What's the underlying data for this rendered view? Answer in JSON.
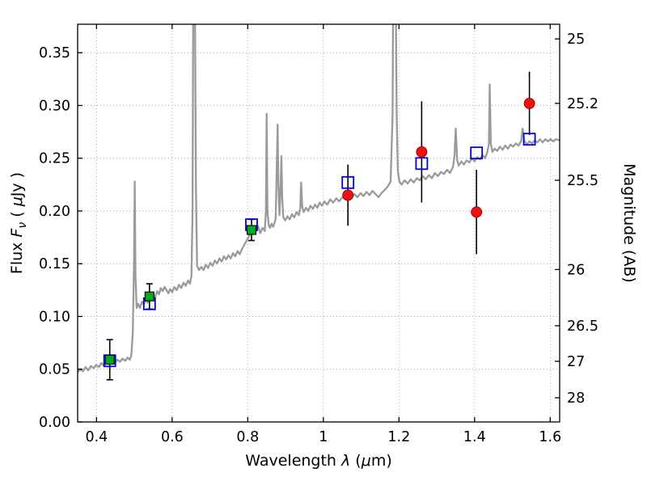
{
  "style": {
    "background": "#ffffff",
    "frame_color": "#000000",
    "grid_color": "#aaaaaa",
    "errorbar_color": "#000000",
    "tick_font_size": 17.5,
    "axis_font_size": 19
  },
  "chart_data": {
    "type": "line",
    "xlabel": "Wavelength λ (μm)",
    "ylabel_left": "Flux Fν ( μJy )",
    "ylabel_right": "Magnitude (AB)",
    "xlabel_parts": [
      {
        "t": "Wavelength ",
        "i": 0
      },
      {
        "t": "λ",
        "i": 1
      },
      {
        "t": " (",
        "i": 0
      },
      {
        "t": "μ",
        "i": 1
      },
      {
        "t": "m)",
        "i": 0
      }
    ],
    "ylabel_left_parts": [
      {
        "t": "Flux ",
        "i": 0
      },
      {
        "t": "F",
        "i": 1
      },
      {
        "t": "ν",
        "i": 1,
        "sub": true
      },
      {
        "t": " ( ",
        "i": 0
      },
      {
        "t": "μ",
        "i": 1
      },
      {
        "t": "Jy )",
        "i": 0
      }
    ],
    "ylabel_right_parts": [
      {
        "t": "Magnitude (AB)",
        "i": 0
      }
    ],
    "xlim": [
      0.35,
      1.625
    ],
    "ylim": [
      0.0,
      0.377
    ],
    "grid": "dotted",
    "x_ticks": [
      {
        "value": 0.4,
        "label": "0.4"
      },
      {
        "value": 0.6,
        "label": "0.6"
      },
      {
        "value": 0.8,
        "label": "0.8"
      },
      {
        "value": 1.0,
        "label": "1"
      },
      {
        "value": 1.2,
        "label": "1.2"
      },
      {
        "value": 1.4,
        "label": "1.4"
      },
      {
        "value": 1.6,
        "label": "1.6"
      }
    ],
    "y_ticks_left": [
      {
        "value": 0.0,
        "label": "0.00"
      },
      {
        "value": 0.05,
        "label": "0.05"
      },
      {
        "value": 0.1,
        "label": "0.10"
      },
      {
        "value": 0.15,
        "label": "0.15"
      },
      {
        "value": 0.2,
        "label": "0.20"
      },
      {
        "value": 0.25,
        "label": "0.25"
      },
      {
        "value": 0.3,
        "label": "0.30"
      },
      {
        "value": 0.35,
        "label": "0.35"
      }
    ],
    "y_ticks_right": [
      {
        "label": "25",
        "flux": 0.3631
      },
      {
        "label": "25.2",
        "flux": 0.302
      },
      {
        "label": "25.5",
        "flux": 0.2291
      },
      {
        "label": "26",
        "flux": 0.1445
      },
      {
        "label": "26.5",
        "flux": 0.0912
      },
      {
        "label": "27",
        "flux": 0.0575
      },
      {
        "label": "28",
        "flux": 0.0229
      }
    ],
    "series": {
      "model_spectrum": {
        "color": "#9a9a9a",
        "linewidth": 2.3,
        "points": [
          [
            0.35,
            0.047
          ],
          [
            0.357,
            0.05
          ],
          [
            0.364,
            0.048
          ],
          [
            0.371,
            0.052
          ],
          [
            0.378,
            0.049
          ],
          [
            0.385,
            0.053
          ],
          [
            0.392,
            0.051
          ],
          [
            0.399,
            0.054
          ],
          [
            0.406,
            0.052
          ],
          [
            0.413,
            0.056
          ],
          [
            0.42,
            0.053
          ],
          [
            0.427,
            0.057
          ],
          [
            0.434,
            0.055
          ],
          [
            0.441,
            0.058
          ],
          [
            0.448,
            0.056
          ],
          [
            0.455,
            0.059
          ],
          [
            0.462,
            0.057
          ],
          [
            0.469,
            0.06
          ],
          [
            0.476,
            0.058
          ],
          [
            0.482,
            0.061
          ],
          [
            0.488,
            0.059
          ],
          [
            0.492,
            0.063
          ],
          [
            0.496,
            0.085
          ],
          [
            0.499,
            0.15
          ],
          [
            0.501,
            0.228
          ],
          [
            0.503,
            0.14
          ],
          [
            0.506,
            0.108
          ],
          [
            0.51,
            0.112
          ],
          [
            0.515,
            0.108
          ],
          [
            0.52,
            0.114
          ],
          [
            0.525,
            0.111
          ],
          [
            0.53,
            0.116
          ],
          [
            0.535,
            0.113
          ],
          [
            0.54,
            0.118
          ],
          [
            0.545,
            0.115
          ],
          [
            0.55,
            0.121
          ],
          [
            0.555,
            0.118
          ],
          [
            0.56,
            0.124
          ],
          [
            0.565,
            0.121
          ],
          [
            0.57,
            0.127
          ],
          [
            0.575,
            0.124
          ],
          [
            0.58,
            0.128
          ],
          [
            0.585,
            0.125
          ],
          [
            0.59,
            0.122
          ],
          [
            0.595,
            0.126
          ],
          [
            0.6,
            0.123
          ],
          [
            0.606,
            0.128
          ],
          [
            0.612,
            0.125
          ],
          [
            0.618,
            0.13
          ],
          [
            0.624,
            0.127
          ],
          [
            0.63,
            0.132
          ],
          [
            0.636,
            0.129
          ],
          [
            0.642,
            0.134
          ],
          [
            0.647,
            0.131
          ],
          [
            0.651,
            0.138
          ],
          [
            0.654,
            0.2
          ],
          [
            0.656,
            0.42
          ],
          [
            0.66,
            0.42
          ],
          [
            0.663,
            0.22
          ],
          [
            0.666,
            0.148
          ],
          [
            0.671,
            0.144
          ],
          [
            0.677,
            0.147
          ],
          [
            0.683,
            0.144
          ],
          [
            0.689,
            0.149
          ],
          [
            0.695,
            0.146
          ],
          [
            0.701,
            0.151
          ],
          [
            0.707,
            0.148
          ],
          [
            0.713,
            0.153
          ],
          [
            0.719,
            0.15
          ],
          [
            0.725,
            0.155
          ],
          [
            0.731,
            0.152
          ],
          [
            0.737,
            0.157
          ],
          [
            0.743,
            0.154
          ],
          [
            0.749,
            0.158
          ],
          [
            0.755,
            0.155
          ],
          [
            0.761,
            0.16
          ],
          [
            0.767,
            0.157
          ],
          [
            0.773,
            0.162
          ],
          [
            0.779,
            0.159
          ],
          [
            0.785,
            0.164
          ],
          [
            0.791,
            0.168
          ],
          [
            0.797,
            0.172
          ],
          [
            0.803,
            0.176
          ],
          [
            0.809,
            0.18
          ],
          [
            0.815,
            0.184
          ],
          [
            0.821,
            0.181
          ],
          [
            0.827,
            0.186
          ],
          [
            0.833,
            0.179
          ],
          [
            0.839,
            0.184
          ],
          [
            0.845,
            0.181
          ],
          [
            0.848,
            0.2
          ],
          [
            0.85,
            0.292
          ],
          [
            0.852,
            0.2
          ],
          [
            0.855,
            0.187
          ],
          [
            0.859,
            0.184
          ],
          [
            0.863,
            0.188
          ],
          [
            0.867,
            0.185
          ],
          [
            0.871,
            0.189
          ],
          [
            0.874,
            0.193
          ],
          [
            0.877,
            0.245
          ],
          [
            0.879,
            0.282
          ],
          [
            0.881,
            0.225
          ],
          [
            0.884,
            0.196
          ],
          [
            0.887,
            0.225
          ],
          [
            0.889,
            0.252
          ],
          [
            0.891,
            0.212
          ],
          [
            0.894,
            0.194
          ],
          [
            0.899,
            0.191
          ],
          [
            0.905,
            0.195
          ],
          [
            0.911,
            0.192
          ],
          [
            0.917,
            0.197
          ],
          [
            0.923,
            0.194
          ],
          [
            0.929,
            0.199
          ],
          [
            0.935,
            0.196
          ],
          [
            0.939,
            0.203
          ],
          [
            0.941,
            0.227
          ],
          [
            0.944,
            0.204
          ],
          [
            0.948,
            0.199
          ],
          [
            0.954,
            0.203
          ],
          [
            0.96,
            0.2
          ],
          [
            0.966,
            0.205
          ],
          [
            0.972,
            0.202
          ],
          [
            0.978,
            0.206
          ],
          [
            0.984,
            0.203
          ],
          [
            0.99,
            0.208
          ],
          [
            0.996,
            0.205
          ],
          [
            1.003,
            0.209
          ],
          [
            1.01,
            0.206
          ],
          [
            1.018,
            0.211
          ],
          [
            1.026,
            0.208
          ],
          [
            1.034,
            0.212
          ],
          [
            1.042,
            0.209
          ],
          [
            1.05,
            0.213
          ],
          [
            1.058,
            0.211
          ],
          [
            1.066,
            0.215
          ],
          [
            1.074,
            0.212
          ],
          [
            1.082,
            0.216
          ],
          [
            1.09,
            0.213
          ],
          [
            1.098,
            0.217
          ],
          [
            1.106,
            0.214
          ],
          [
            1.114,
            0.218
          ],
          [
            1.122,
            0.215
          ],
          [
            1.13,
            0.219
          ],
          [
            1.138,
            0.216
          ],
          [
            1.146,
            0.213
          ],
          [
            1.154,
            0.217
          ],
          [
            1.162,
            0.22
          ],
          [
            1.17,
            0.223
          ],
          [
            1.178,
            0.228
          ],
          [
            1.183,
            0.29
          ],
          [
            1.185,
            0.43
          ],
          [
            1.191,
            0.43
          ],
          [
            1.194,
            0.29
          ],
          [
            1.197,
            0.238
          ],
          [
            1.201,
            0.228
          ],
          [
            1.207,
            0.225
          ],
          [
            1.215,
            0.229
          ],
          [
            1.223,
            0.226
          ],
          [
            1.231,
            0.23
          ],
          [
            1.239,
            0.227
          ],
          [
            1.247,
            0.231
          ],
          [
            1.255,
            0.229
          ],
          [
            1.263,
            0.233
          ],
          [
            1.271,
            0.23
          ],
          [
            1.279,
            0.234
          ],
          [
            1.287,
            0.231
          ],
          [
            1.295,
            0.236
          ],
          [
            1.303,
            0.233
          ],
          [
            1.311,
            0.237
          ],
          [
            1.319,
            0.235
          ],
          [
            1.327,
            0.239
          ],
          [
            1.335,
            0.236
          ],
          [
            1.343,
            0.242
          ],
          [
            1.347,
            0.252
          ],
          [
            1.35,
            0.278
          ],
          [
            1.354,
            0.248
          ],
          [
            1.358,
            0.243
          ],
          [
            1.365,
            0.247
          ],
          [
            1.372,
            0.244
          ],
          [
            1.379,
            0.248
          ],
          [
            1.386,
            0.246
          ],
          [
            1.393,
            0.25
          ],
          [
            1.4,
            0.247
          ],
          [
            1.407,
            0.251
          ],
          [
            1.414,
            0.249
          ],
          [
            1.421,
            0.253
          ],
          [
            1.428,
            0.25
          ],
          [
            1.434,
            0.256
          ],
          [
            1.438,
            0.264
          ],
          [
            1.44,
            0.32
          ],
          [
            1.443,
            0.264
          ],
          [
            1.447,
            0.256
          ],
          [
            1.453,
            0.259
          ],
          [
            1.46,
            0.257
          ],
          [
            1.467,
            0.261
          ],
          [
            1.474,
            0.258
          ],
          [
            1.481,
            0.262
          ],
          [
            1.488,
            0.259
          ],
          [
            1.495,
            0.263
          ],
          [
            1.502,
            0.261
          ],
          [
            1.509,
            0.264
          ],
          [
            1.516,
            0.262
          ],
          [
            1.523,
            0.266
          ],
          [
            1.527,
            0.278
          ],
          [
            1.531,
            0.267
          ],
          [
            1.538,
            0.263
          ],
          [
            1.545,
            0.266
          ],
          [
            1.552,
            0.264
          ],
          [
            1.559,
            0.267
          ],
          [
            1.566,
            0.265
          ],
          [
            1.573,
            0.268
          ],
          [
            1.58,
            0.265
          ],
          [
            1.587,
            0.268
          ],
          [
            1.594,
            0.266
          ],
          [
            1.601,
            0.268
          ],
          [
            1.608,
            0.266
          ],
          [
            1.615,
            0.268
          ],
          [
            1.625,
            0.267
          ]
        ]
      },
      "model_photometry": {
        "marker": "open-square",
        "color": "#0000dd",
        "size": 14,
        "points": [
          {
            "x": 0.435,
            "y": 0.058
          },
          {
            "x": 0.54,
            "y": 0.112
          },
          {
            "x": 0.81,
            "y": 0.187
          },
          {
            "x": 1.065,
            "y": 0.227
          },
          {
            "x": 1.26,
            "y": 0.245
          },
          {
            "x": 1.405,
            "y": 0.255
          },
          {
            "x": 1.545,
            "y": 0.268
          }
        ]
      },
      "observed_squares": {
        "marker": "filled-square",
        "fill": "#00aa22",
        "edge": "#000000",
        "size": 11,
        "capsize": 4,
        "points": [
          {
            "x": 0.435,
            "y": 0.059,
            "yerr": 0.019
          },
          {
            "x": 0.54,
            "y": 0.119,
            "yerr": 0.012
          },
          {
            "x": 0.81,
            "y": 0.182,
            "yerr": 0.01
          }
        ]
      },
      "observed_circles": {
        "marker": "filled-circle",
        "fill": "#ee1111",
        "edge": "#990000",
        "size": 13,
        "capsize": 0,
        "points": [
          {
            "x": 1.065,
            "y": 0.215,
            "yerr": 0.029
          },
          {
            "x": 1.26,
            "y": 0.256,
            "yerr": 0.048
          },
          {
            "x": 1.405,
            "y": 0.199,
            "yerr": 0.04
          },
          {
            "x": 1.545,
            "y": 0.302,
            "yerr": 0.03
          }
        ]
      }
    }
  }
}
